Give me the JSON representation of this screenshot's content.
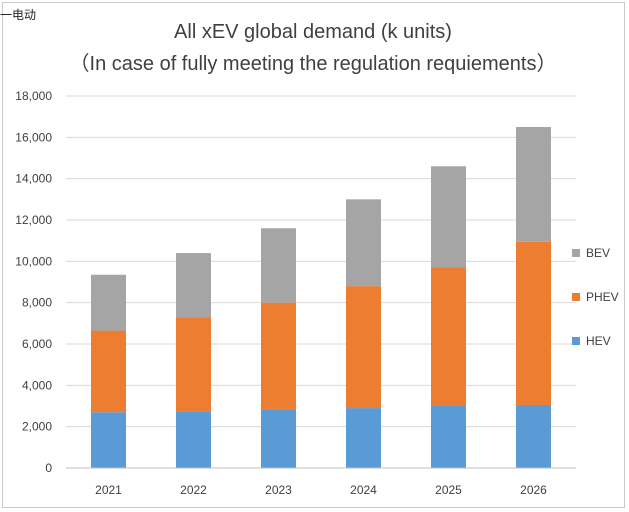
{
  "corner_label": "一电动",
  "chart_data": {
    "type": "bar",
    "stacked": true,
    "title": "All xEV global demand (k units)",
    "subtitle": "（In case of fully meeting the regulation requiements）",
    "xlabel": "",
    "ylabel": "",
    "categories": [
      "2021",
      "2022",
      "2023",
      "2024",
      "2025",
      "2026"
    ],
    "series": [
      {
        "name": "HEV",
        "color": "#5b9bd5",
        "values": [
          2700,
          2750,
          2850,
          2900,
          3000,
          3050
        ]
      },
      {
        "name": "PHEV",
        "color": "#ed7d31",
        "values": [
          3950,
          4550,
          5150,
          5900,
          6700,
          7900
        ]
      },
      {
        "name": "BEV",
        "color": "#a5a5a5",
        "values": [
          2700,
          3100,
          3600,
          4200,
          4900,
          5550
        ]
      }
    ],
    "ylim": [
      0,
      18000
    ],
    "yticks": [
      "0",
      "2,000",
      "4,000",
      "6,000",
      "8,000",
      "10,000",
      "12,000",
      "14,000",
      "16,000",
      "18,000"
    ],
    "grid": true,
    "legend": "right",
    "legend_order": [
      "BEV",
      "PHEV",
      "HEV"
    ],
    "grid_color": "#d9d9d9"
  }
}
